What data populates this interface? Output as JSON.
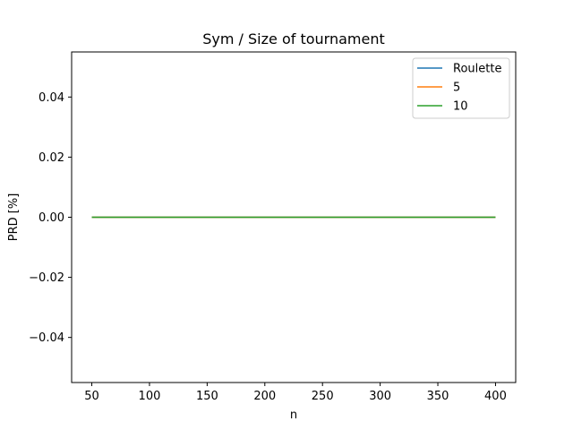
{
  "chart_data": {
    "type": "line",
    "title": "Sym / Size of tournament",
    "xlabel": "n",
    "ylabel": "PRD [%]",
    "xlim": [
      32.5,
      417.5
    ],
    "ylim": [
      -0.055,
      0.055
    ],
    "xticks": [
      50,
      100,
      150,
      200,
      250,
      300,
      350,
      400
    ],
    "xtick_labels": [
      "50",
      "100",
      "150",
      "200",
      "250",
      "300",
      "350",
      "400"
    ],
    "yticks": [
      -0.04,
      -0.02,
      0.0,
      0.02,
      0.04
    ],
    "ytick_labels": [
      "−0.04",
      "−0.02",
      "0.00",
      "0.02",
      "0.04"
    ],
    "x": [
      50,
      100,
      150,
      200,
      250,
      300,
      350,
      400
    ],
    "series": [
      {
        "name": "Roulette",
        "color": "#1f77b4",
        "values": [
          0,
          0,
          0,
          0,
          0,
          0,
          0,
          0
        ]
      },
      {
        "name": "5",
        "color": "#ff7f0e",
        "values": [
          0,
          0,
          0,
          0,
          0,
          0,
          0,
          0
        ]
      },
      {
        "name": "10",
        "color": "#2ca02c",
        "values": [
          0,
          0,
          0,
          0,
          0,
          0,
          0,
          0
        ]
      }
    ],
    "legend_position": "top-right",
    "grid": false
  }
}
